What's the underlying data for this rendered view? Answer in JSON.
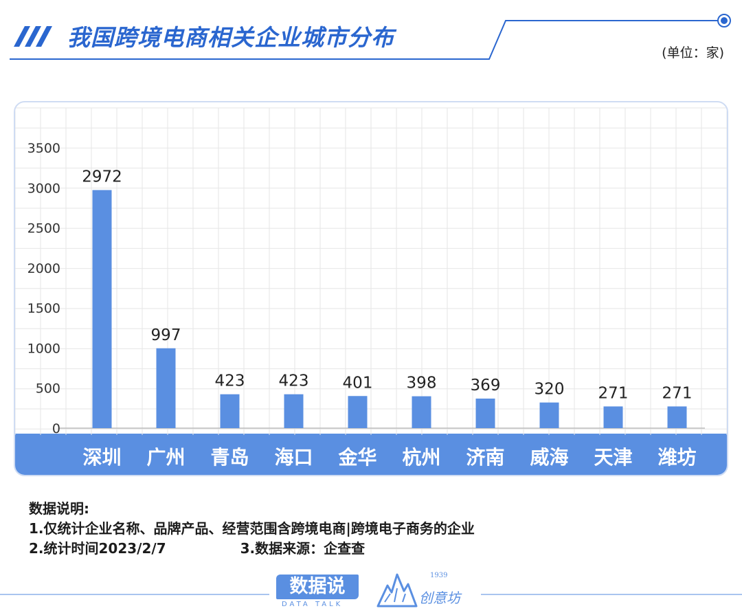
{
  "header": {
    "title": "我国跨境电商相关企业城市分布",
    "unit": "(单位：家)"
  },
  "colors": {
    "accent": "#2a66cf",
    "bar": "#5a8fe1",
    "band": "#5a8fe1",
    "grid": "#e6e6e6"
  },
  "chart_data": {
    "type": "bar",
    "categories": [
      "深圳",
      "广州",
      "青岛",
      "海口",
      "金华",
      "杭州",
      "济南",
      "威海",
      "天津",
      "潍坊"
    ],
    "values": [
      2972,
      997,
      423,
      423,
      401,
      398,
      369,
      320,
      271,
      271
    ],
    "yticks": [
      0,
      500,
      1000,
      1500,
      2000,
      2500,
      3000,
      3500
    ],
    "ylim": [
      0,
      3500
    ],
    "grid": true,
    "data_labels": true
  },
  "notes": {
    "heading": "数据说明:",
    "line1": "1.仅统计企业名称、品牌产品、经营范围含跨境电商|跨境电子商务的企业",
    "line2": "2.统计时间2023/2/7",
    "line3": "3.数据来源：企查查"
  },
  "footer": {
    "logo1_text": "数据说",
    "logo1_sub": "DATA TALK",
    "logo2_year": "1939",
    "logo2_name": "创意坊"
  }
}
